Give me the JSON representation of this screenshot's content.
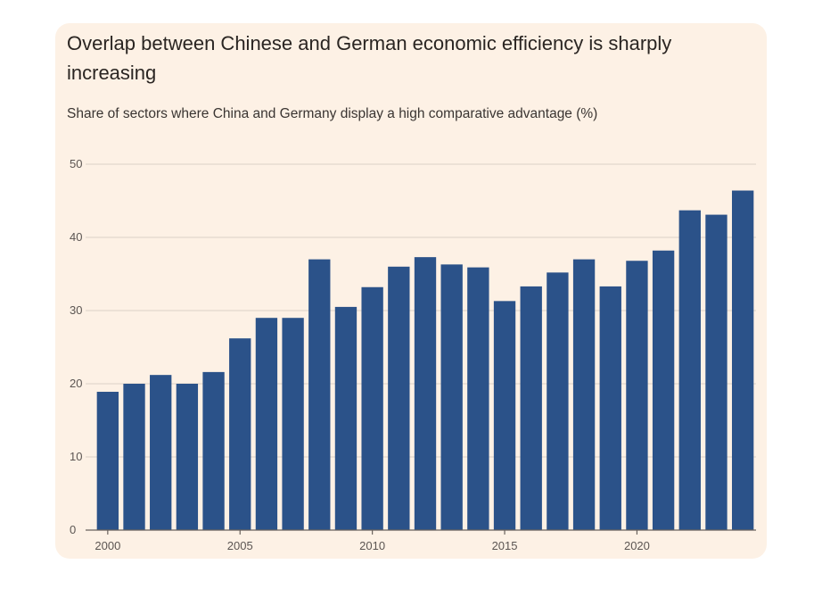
{
  "title": "Overlap between Chinese and German economic efficiency is sharply increasing",
  "subtitle": "Share of sectors where China and Germany display a high comparative advantage (%)",
  "colors": {
    "bar": "#2b5289",
    "background": "#fdf1e5"
  },
  "chart_data": {
    "type": "bar",
    "title": "Overlap between Chinese and German economic efficiency is sharply increasing",
    "subtitle": "Share of sectors where China and Germany display a high comparative advantage (%)",
    "xlabel": "",
    "ylabel": "",
    "ylim": [
      0,
      50
    ],
    "yticks": [
      0,
      10,
      20,
      30,
      40,
      50
    ],
    "xticks": [
      2000,
      2005,
      2010,
      2015,
      2020
    ],
    "grid": true,
    "categories": [
      2000,
      2001,
      2002,
      2003,
      2004,
      2005,
      2006,
      2007,
      2008,
      2009,
      2010,
      2011,
      2012,
      2013,
      2014,
      2015,
      2016,
      2017,
      2018,
      2019,
      2020,
      2021,
      2022,
      2023,
      2024
    ],
    "values": [
      18.9,
      20.0,
      21.2,
      20.0,
      21.6,
      26.2,
      29.0,
      29.0,
      37.0,
      30.5,
      33.2,
      36.0,
      37.3,
      36.3,
      35.9,
      31.3,
      33.3,
      35.2,
      37.0,
      33.3,
      36.8,
      38.2,
      43.7,
      43.1,
      46.4
    ]
  }
}
